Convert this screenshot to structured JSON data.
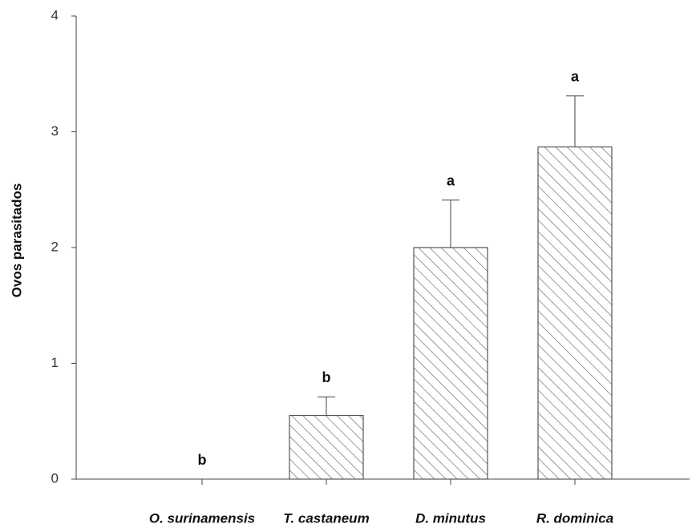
{
  "chart_data": {
    "type": "bar",
    "y_label": "Ovos parasitados",
    "categories": [
      "O. surinamensis",
      "T. castaneum",
      "D. minutus",
      "R. dominica"
    ],
    "values": [
      0,
      0.55,
      2.0,
      2.87
    ],
    "errors": [
      null,
      0.16,
      0.41,
      0.44
    ],
    "annotations": [
      "b",
      "b",
      "a",
      "a"
    ],
    "color": "#555555",
    "ylim": [
      0,
      4
    ],
    "yticks": [
      0,
      1,
      2,
      3,
      4
    ],
    "grid": false
  }
}
